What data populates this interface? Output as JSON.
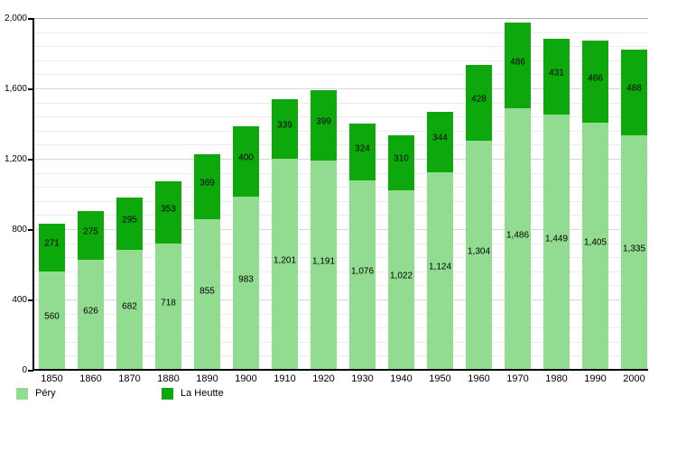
{
  "chart_data": {
    "type": "bar",
    "stacked": true,
    "categories": [
      "1850",
      "1860",
      "1870",
      "1880",
      "1890",
      "1900",
      "1910",
      "1920",
      "1930",
      "1940",
      "1950",
      "1960",
      "1970",
      "1980",
      "1990",
      "2000"
    ],
    "series": [
      {
        "name": "Péry",
        "color": "#92dc92",
        "values": [
          560,
          626,
          682,
          718,
          855,
          983,
          1201,
          1191,
          1076,
          1022,
          1124,
          1304,
          1486,
          1449,
          1405,
          1335
        ]
      },
      {
        "name": "La Heutte",
        "color": "#0ca80c",
        "values": [
          271,
          275,
          295,
          353,
          369,
          400,
          339,
          399,
          324,
          310,
          344,
          428,
          486,
          431,
          466,
          488
        ]
      }
    ],
    "value_labels": true,
    "number_format": "thousands-comma",
    "ylim": [
      0,
      2000
    ],
    "yticks": [
      0,
      400,
      800,
      1200,
      1600,
      2000
    ],
    "minor_grid_step": 80,
    "grid": true,
    "legend_position": "bottom-left",
    "axis_color": "#000000",
    "background": "#ffffff"
  },
  "legend": {
    "items": [
      {
        "label": "Péry",
        "color": "#92dc92"
      },
      {
        "label": "La Heutte",
        "color": "#0ca80c"
      }
    ]
  }
}
